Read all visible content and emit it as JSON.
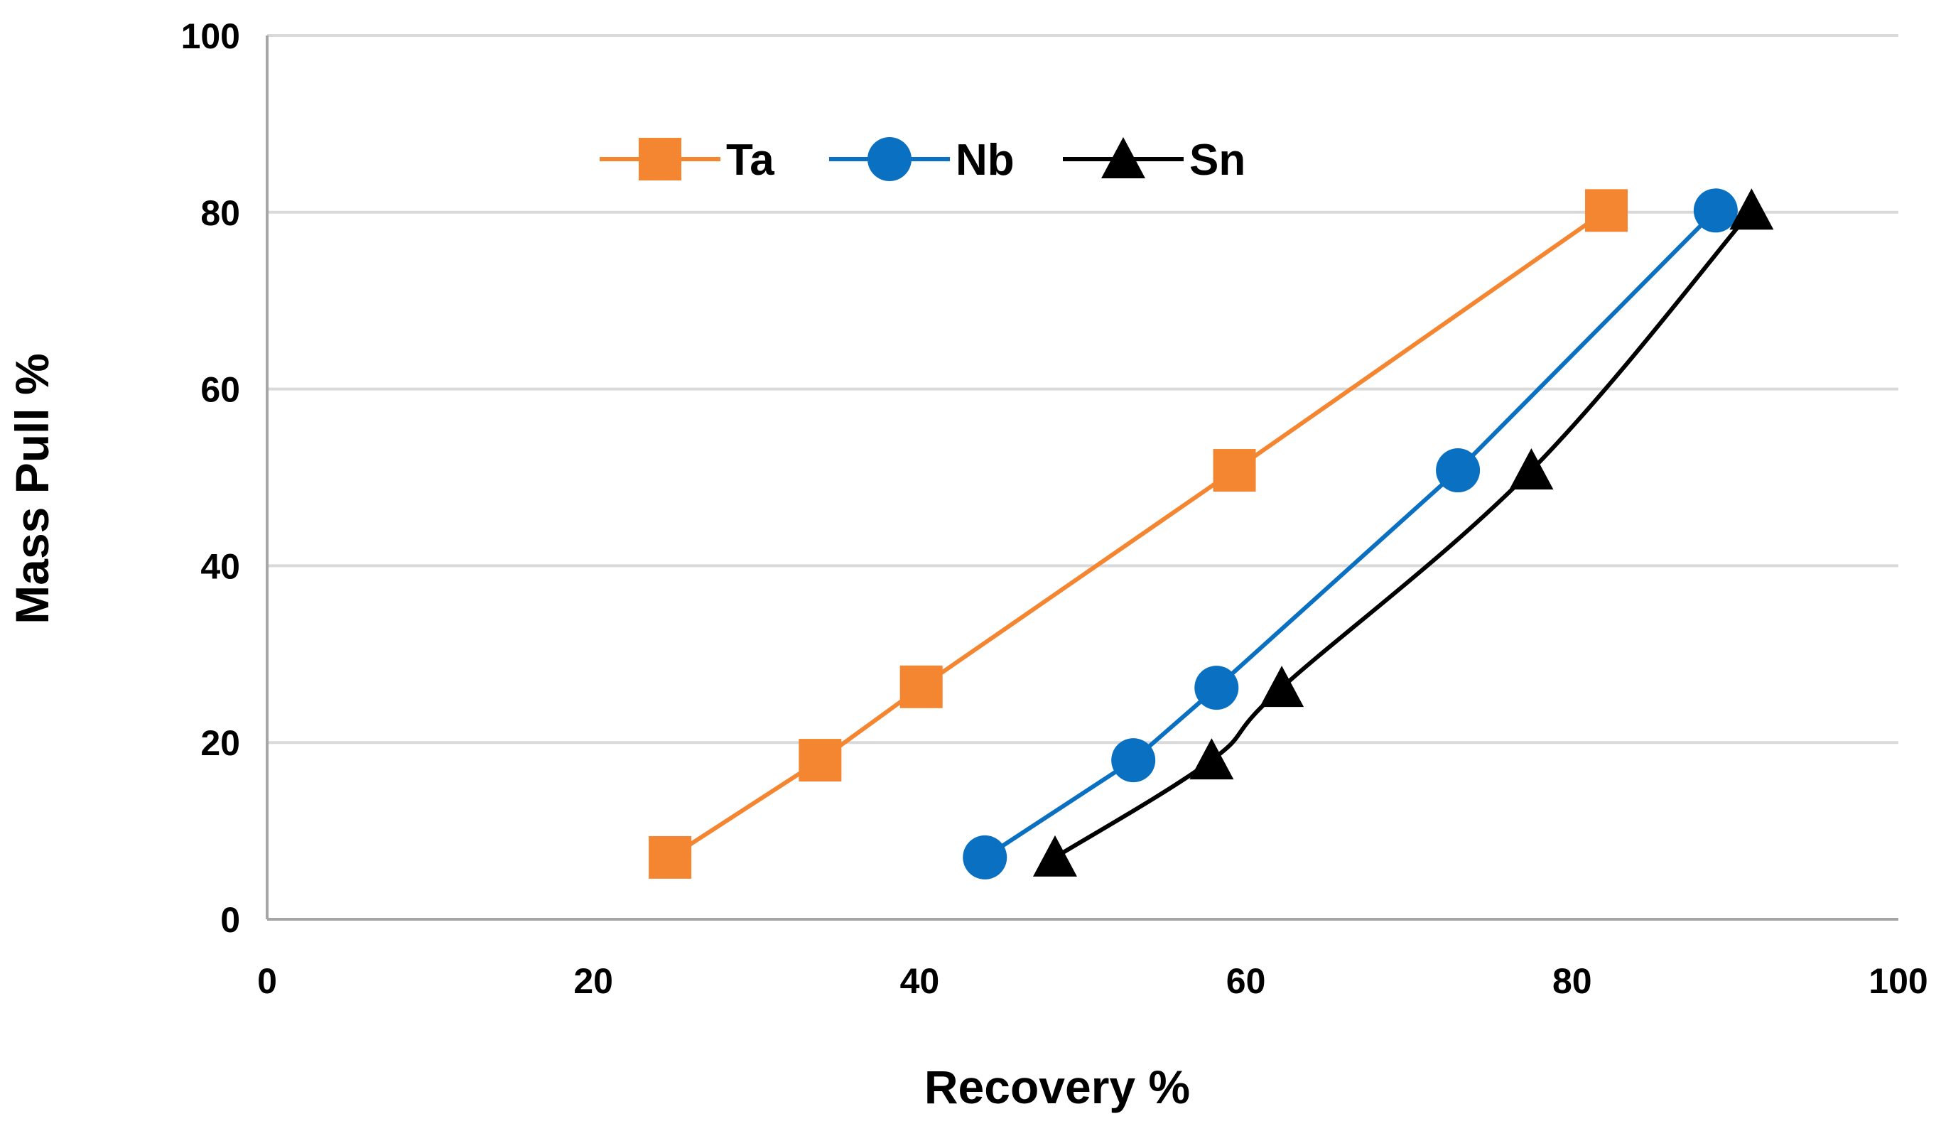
{
  "chart_data": {
    "type": "line",
    "title": "",
    "xlabel": "Recovery %",
    "ylabel": "Mass Pull %",
    "xlim": [
      0,
      100
    ],
    "ylim": [
      0,
      100
    ],
    "xticks": [
      0,
      20,
      40,
      60,
      80,
      100
    ],
    "yticks": [
      0,
      20,
      40,
      60,
      80,
      100
    ],
    "grid": "horizontal",
    "legend_position": "top-left-inside",
    "series": [
      {
        "name": "Ta",
        "color": "#F58631",
        "marker": "square",
        "smooth": false,
        "points": [
          {
            "x": 24.7,
            "y": 7
          },
          {
            "x": 33.9,
            "y": 18
          },
          {
            "x": 40.1,
            "y": 26.3
          },
          {
            "x": 59.3,
            "y": 50.8
          },
          {
            "x": 82.1,
            "y": 80.2
          }
        ]
      },
      {
        "name": "Nb",
        "color": "#0A70C1",
        "marker": "circle",
        "smooth": false,
        "points": [
          {
            "x": 44,
            "y": 7
          },
          {
            "x": 53.1,
            "y": 18
          },
          {
            "x": 58.2,
            "y": 26.2
          },
          {
            "x": 73,
            "y": 50.8
          },
          {
            "x": 88.8,
            "y": 80.2
          }
        ]
      },
      {
        "name": "Sn",
        "color": "#000000",
        "marker": "triangle",
        "smooth": true,
        "points": [
          {
            "x": 48.3,
            "y": 7
          },
          {
            "x": 57.9,
            "y": 18
          },
          {
            "x": 62.2,
            "y": 26.2
          },
          {
            "x": 77.5,
            "y": 50.8
          },
          {
            "x": 91,
            "y": 80.2
          }
        ]
      }
    ]
  }
}
